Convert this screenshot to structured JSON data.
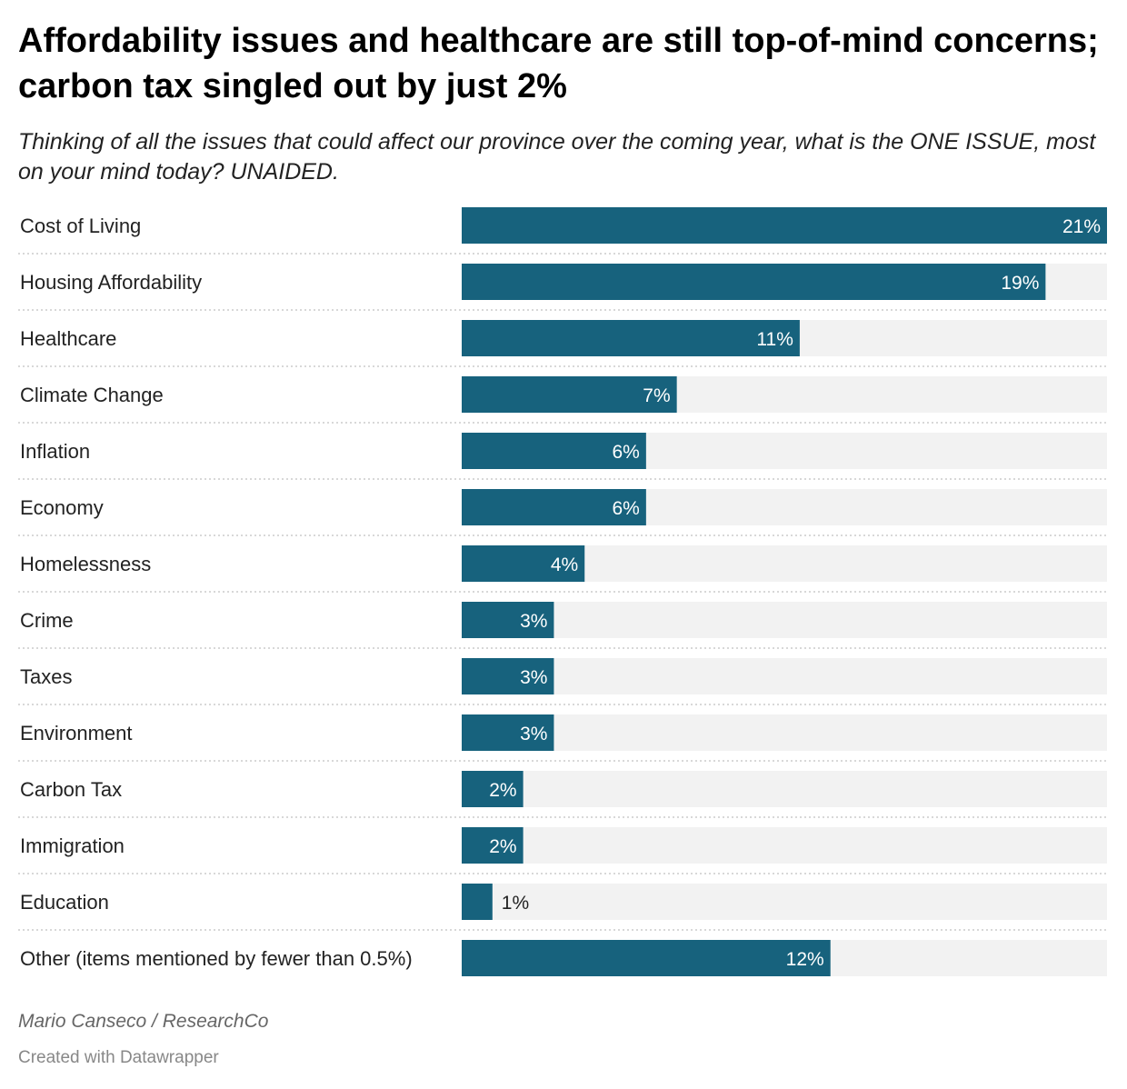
{
  "title": "Affordability issues and healthcare are still top-of-mind concerns; carbon tax singled out by just 2%",
  "subtitle": "Thinking of all the issues that could affect our province over the coming year, what is the ONE ISSUE, most on your mind today? UNAIDED.",
  "source": "Mario Canseco / ResearchCo",
  "credit": "Created with Datawrapper",
  "colors": {
    "bar": "#17627d",
    "track": "#f2f2f2",
    "label_inside": "#ffffff",
    "label_outside": "#222222",
    "divider": "#cccccc"
  },
  "chart_data": {
    "type": "bar",
    "orientation": "horizontal",
    "categories": [
      "Cost of Living",
      "Housing Affordability",
      "Healthcare",
      "Climate Change",
      "Inflation",
      "Economy",
      "Homelessness",
      "Crime",
      "Taxes",
      "Environment",
      "Carbon Tax",
      "Immigration",
      "Education",
      "Other (items mentioned by fewer than 0.5%)"
    ],
    "values": [
      21,
      19,
      11,
      7,
      6,
      6,
      4,
      3,
      3,
      3,
      2,
      2,
      1,
      12
    ],
    "value_labels": [
      "21%",
      "19%",
      "11%",
      "7%",
      "6%",
      "6%",
      "4%",
      "3%",
      "3%",
      "3%",
      "2%",
      "2%",
      "1%",
      "12%"
    ],
    "xlim": [
      0,
      21
    ],
    "unit": "%"
  }
}
